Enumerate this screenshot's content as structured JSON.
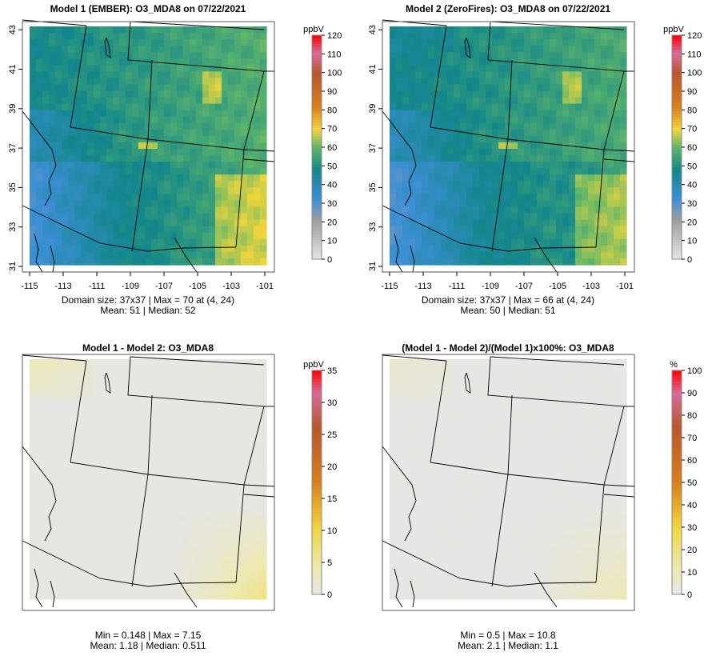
{
  "panels": [
    {
      "title": "Model 1 (EMBER): O3_MDA8 on 07/22/2021",
      "unit": "ppbV",
      "stats_line1": "Domain size: 37x37 | Max = 70 at (4, 24)",
      "stats_line2": "Mean: 51 |  Median: 52",
      "colorbar_ticks": [
        "0",
        "10",
        "20",
        "30",
        "40",
        "50",
        "60",
        "70",
        "80",
        "90",
        "100",
        "110",
        "120"
      ],
      "show_axes": true
    },
    {
      "title": "Model 2 (ZeroFires): O3_MDA8 on 07/22/2021",
      "unit": "ppbV",
      "stats_line1": "Domain size: 37x37 | Max = 66 at (4, 24)",
      "stats_line2": "Mean: 50 |  Median: 51",
      "colorbar_ticks": [
        "0",
        "10",
        "20",
        "30",
        "40",
        "50",
        "60",
        "70",
        "80",
        "90",
        "100",
        "110",
        "120"
      ],
      "show_axes": true
    },
    {
      "title": "Model 1 - Model 2: O3_MDA8",
      "unit": "ppbV",
      "stats_line1": "Min = 0.148 | Max = 7.15",
      "stats_line2": "Mean: 1.18 |  Median: 0.511",
      "colorbar_ticks": [
        "0",
        "5",
        "10",
        "15",
        "20",
        "25",
        "30",
        "35"
      ],
      "show_axes": false
    },
    {
      "title": "(Model 1 - Model 2)/(Model 1)x100%: O3_MDA8",
      "unit": "%",
      "stats_line1": "Min = 0.5 | Max = 10.8",
      "stats_line2": "Mean: 2.1 |  Median: 1.1",
      "colorbar_ticks": [
        "0",
        "10",
        "20",
        "30",
        "40",
        "50",
        "60",
        "70",
        "80",
        "90",
        "100"
      ],
      "show_axes": false
    }
  ],
  "lat_ticks": [
    "31",
    "33",
    "35",
    "37",
    "39",
    "41",
    "43"
  ],
  "lon_ticks": [
    "-115",
    "-113",
    "-111",
    "-109",
    "-107",
    "-105",
    "-103",
    "-101"
  ],
  "colors": {
    "low": "#e6e6e6",
    "gray": "#a0a0a0",
    "blue": "#3d8fd6",
    "teal": "#12868a",
    "green": "#5fb56a",
    "yellow": "#f2d63a",
    "orange": "#d9801a",
    "brown": "#b9552d",
    "pink": "#d86c9a",
    "red": "#ff0000"
  }
}
